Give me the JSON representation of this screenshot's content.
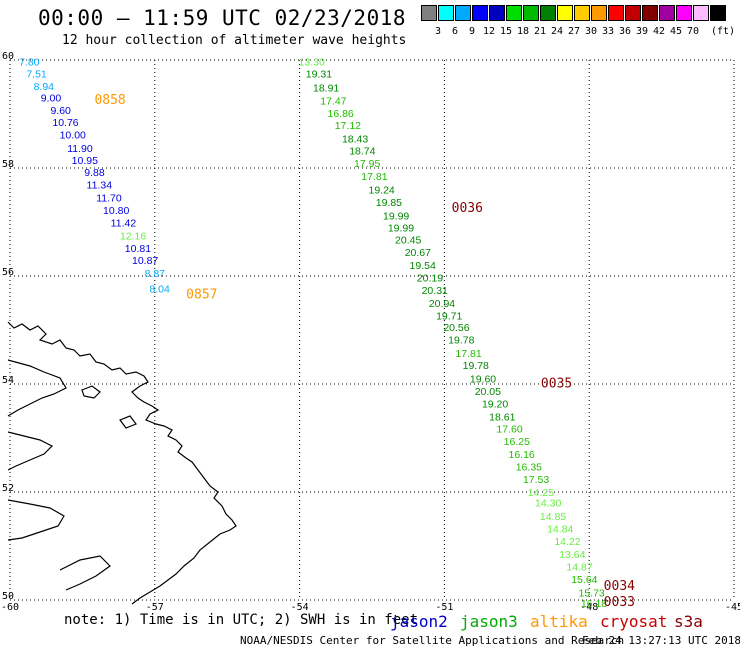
{
  "header": {
    "title": "00:00 – 11:59 UTC 02/23/2018",
    "subtitle": "12 hour collection of altimeter wave heights"
  },
  "legend": {
    "unit": "(ft)",
    "colors": [
      "#808080",
      "#00ffff",
      "#00aaff",
      "#0000ff",
      "#0000c0",
      "#00dd00",
      "#00bb00",
      "#008000",
      "#ffff00",
      "#ffcc00",
      "#ff9900",
      "#ff0000",
      "#c00000",
      "#800000",
      "#a000a0",
      "#ff00ff",
      "#ffbbff",
      "#000000"
    ],
    "labels": [
      "3",
      "6",
      "9",
      "12",
      "15",
      "18",
      "21",
      "24",
      "27",
      "30",
      "33",
      "36",
      "39",
      "42",
      "45",
      "70"
    ]
  },
  "axes": {
    "lat_ticks": [
      "60",
      "58",
      "56",
      "54",
      "52",
      "50"
    ],
    "lon_ticks": [
      "-60",
      "-57",
      "-54",
      "-51",
      "-48",
      "-45"
    ]
  },
  "satellites": {
    "jason2": {
      "label": "jason2",
      "color": "#0000cc"
    },
    "jason3": {
      "label": "jason3",
      "color": "#00aa00"
    },
    "altika": {
      "label": "altika",
      "color": "#ff9900"
    },
    "cryosat": {
      "label": "cryosat",
      "color": "#cc0000"
    },
    "s3a": {
      "label": "s3a",
      "color": "#880000"
    }
  },
  "tracks": [
    {
      "satellite": "altika",
      "time_labels": [
        {
          "text": "0858",
          "lat": 59.25,
          "lon": -58.25
        },
        {
          "text": "0857",
          "lat": 55.65,
          "lon": -56.35
        }
      ],
      "values": [
        {
          "v": 7.8,
          "lat": 59.95,
          "lon": -59.6
        },
        {
          "v": 7.51,
          "lat": 59.73,
          "lon": -59.45
        },
        {
          "v": 8.94,
          "lat": 59.5,
          "lon": -59.3
        },
        {
          "v": 9.0,
          "lat": 59.28,
          "lon": -59.15
        },
        {
          "v": 9.6,
          "lat": 59.05,
          "lon": -58.95
        },
        {
          "v": 10.76,
          "lat": 58.83,
          "lon": -58.85
        },
        {
          "v": 10.0,
          "lat": 58.6,
          "lon": -58.7
        },
        {
          "v": 11.9,
          "lat": 58.35,
          "lon": -58.55
        },
        {
          "v": 10.95,
          "lat": 58.13,
          "lon": -58.45
        },
        {
          "v": 9.88,
          "lat": 57.9,
          "lon": -58.25
        },
        {
          "v": 11.34,
          "lat": 57.67,
          "lon": -58.15
        },
        {
          "v": 11.7,
          "lat": 57.43,
          "lon": -57.95
        },
        {
          "v": 10.8,
          "lat": 57.2,
          "lon": -57.8
        },
        {
          "v": 11.42,
          "lat": 56.97,
          "lon": -57.65
        },
        {
          "v": 12.16,
          "lat": 56.73,
          "lon": -57.45
        },
        {
          "v": 10.81,
          "lat": 56.5,
          "lon": -57.35
        },
        {
          "v": 10.87,
          "lat": 56.27,
          "lon": -57.2
        },
        {
          "v": 8.87,
          "lat": 56.03,
          "lon": -57.0
        },
        {
          "v": 8.04,
          "lat": 55.75,
          "lon": -56.9
        }
      ]
    },
    {
      "satellite": "s3a",
      "time_labels": [
        {
          "text": "0036",
          "lat": 57.25,
          "lon": -50.85
        },
        {
          "text": "0035",
          "lat": 54.0,
          "lon": -49.0
        },
        {
          "text": "0034",
          "lat": 50.25,
          "lon": -47.7
        },
        {
          "text": "0033",
          "lat": 49.95,
          "lon": -47.7
        }
      ],
      "values": [
        {
          "v": 13.3,
          "lat": 59.95,
          "lon": -53.75
        },
        {
          "v": 19.31,
          "lat": 59.73,
          "lon": -53.6
        },
        {
          "v": 18.91,
          "lat": 59.47,
          "lon": -53.45
        },
        {
          "v": 17.47,
          "lat": 59.23,
          "lon": -53.3
        },
        {
          "v": 16.86,
          "lat": 59.0,
          "lon": -53.15
        },
        {
          "v": 17.12,
          "lat": 58.77,
          "lon": -53.0
        },
        {
          "v": 18.43,
          "lat": 58.52,
          "lon": -52.85
        },
        {
          "v": 18.74,
          "lat": 58.3,
          "lon": -52.7
        },
        {
          "v": 17.95,
          "lat": 58.07,
          "lon": -52.6
        },
        {
          "v": 17.81,
          "lat": 57.83,
          "lon": -52.45
        },
        {
          "v": 19.24,
          "lat": 57.58,
          "lon": -52.3
        },
        {
          "v": 19.85,
          "lat": 57.35,
          "lon": -52.15
        },
        {
          "v": 19.99,
          "lat": 57.1,
          "lon": -52.0
        },
        {
          "v": 19.99,
          "lat": 56.88,
          "lon": -51.9
        },
        {
          "v": 20.45,
          "lat": 56.65,
          "lon": -51.75
        },
        {
          "v": 20.67,
          "lat": 56.42,
          "lon": -51.55
        },
        {
          "v": 19.54,
          "lat": 56.18,
          "lon": -51.45
        },
        {
          "v": 20.19,
          "lat": 55.95,
          "lon": -51.3
        },
        {
          "v": 20.31,
          "lat": 55.72,
          "lon": -51.2
        },
        {
          "v": 20.94,
          "lat": 55.48,
          "lon": -51.05
        },
        {
          "v": 19.71,
          "lat": 55.25,
          "lon": -50.9
        },
        {
          "v": 20.56,
          "lat": 55.03,
          "lon": -50.75
        },
        {
          "v": 19.78,
          "lat": 54.8,
          "lon": -50.65
        },
        {
          "v": 17.81,
          "lat": 54.55,
          "lon": -50.5
        },
        {
          "v": 19.78,
          "lat": 54.33,
          "lon": -50.35
        },
        {
          "v": 19.6,
          "lat": 54.08,
          "lon": -50.2
        },
        {
          "v": 20.05,
          "lat": 53.85,
          "lon": -50.1
        },
        {
          "v": 19.2,
          "lat": 53.62,
          "lon": -49.95
        },
        {
          "v": 18.61,
          "lat": 53.38,
          "lon": -49.8
        },
        {
          "v": 17.6,
          "lat": 53.15,
          "lon": -49.65
        },
        {
          "v": 16.25,
          "lat": 52.92,
          "lon": -49.5
        },
        {
          "v": 16.16,
          "lat": 52.68,
          "lon": -49.4
        },
        {
          "v": 16.35,
          "lat": 52.45,
          "lon": -49.25
        },
        {
          "v": 17.53,
          "lat": 52.22,
          "lon": -49.1
        },
        {
          "v": 14.25,
          "lat": 51.98,
          "lon": -49.0
        },
        {
          "v": 14.3,
          "lat": 51.78,
          "lon": -48.85
        },
        {
          "v": 14.85,
          "lat": 51.53,
          "lon": -48.75
        },
        {
          "v": 14.84,
          "lat": 51.3,
          "lon": -48.6
        },
        {
          "v": 14.22,
          "lat": 51.07,
          "lon": -48.45
        },
        {
          "v": 13.64,
          "lat": 50.83,
          "lon": -48.35
        },
        {
          "v": 14.87,
          "lat": 50.6,
          "lon": -48.2
        },
        {
          "v": 15.64,
          "lat": 50.37,
          "lon": -48.1
        },
        {
          "v": 15.73,
          "lat": 50.12,
          "lon": -47.95
        },
        {
          "v": 16.18,
          "lat": 49.92,
          "lon": -47.9
        }
      ]
    }
  ],
  "footer": {
    "note": "note: 1) Time is in UTC; 2) SWH is in feet",
    "credit": "NOAA/NESDIS Center for Satellite Applications and Research",
    "generated": "Feb 24 13:27:13 UTC 2018"
  }
}
